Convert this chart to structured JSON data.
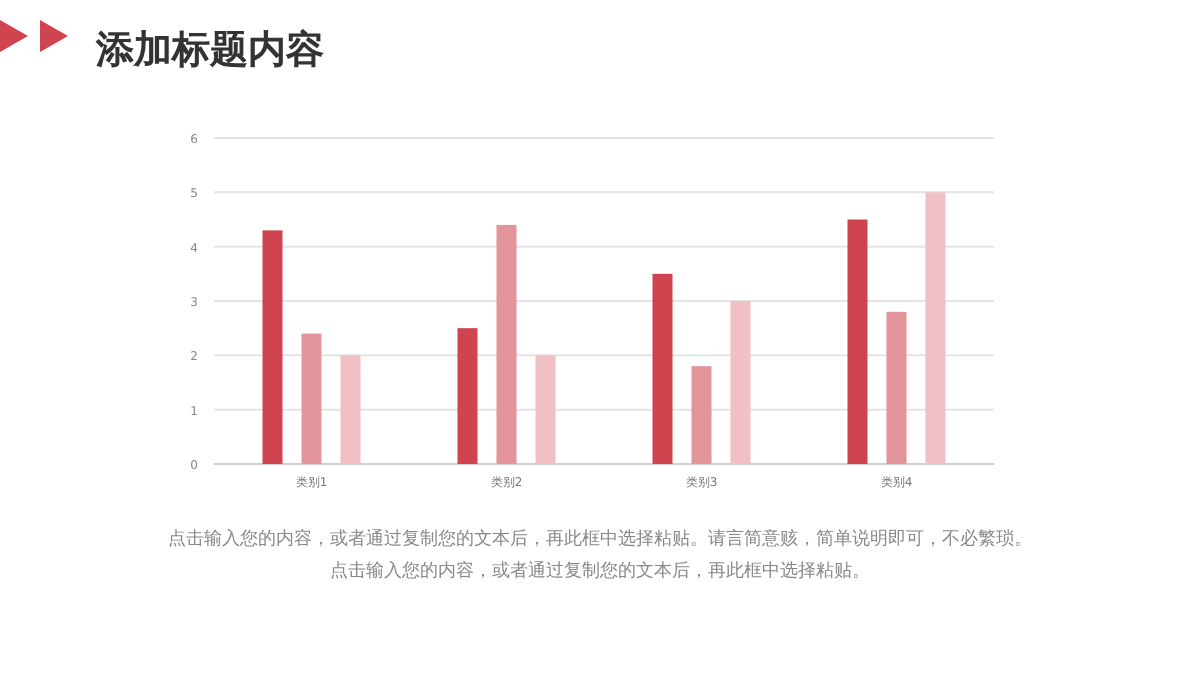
{
  "chart_data": {
    "type": "bar",
    "title": "添加标题内容",
    "categories": [
      "类别1",
      "类别2",
      "类别3",
      "类别4"
    ],
    "series": [
      {
        "color": "#d0444f",
        "values": [
          4.3,
          2.5,
          3.5,
          4.5
        ]
      },
      {
        "color": "#e3939a",
        "values": [
          2.4,
          4.4,
          1.8,
          2.8
        ]
      },
      {
        "color": "#f0c0c4",
        "values": [
          2,
          2,
          3,
          5
        ]
      }
    ],
    "ylim": [
      0,
      6
    ],
    "yticks": [
      0,
      1,
      2,
      3,
      4,
      5,
      6
    ],
    "grid": "y",
    "annotations": [
      "点击输入您的内容，或者通过复制您的文本后，再此框中选择粘贴。请言简意赅，简单说明即可，不必繁琐。",
      "点击输入您的内容，或者通过复制您的文本后，再此框中选择粘贴。"
    ]
  }
}
